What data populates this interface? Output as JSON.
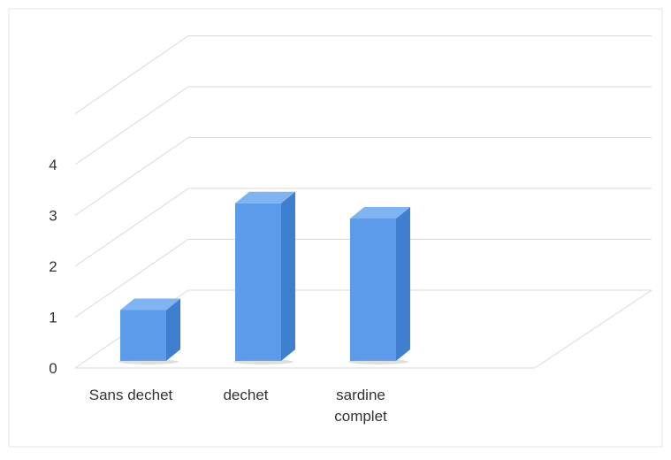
{
  "chart_data": {
    "type": "bar",
    "title": "",
    "xlabel": "",
    "ylabel": "",
    "categories": [
      "Sans dechet",
      "dechet",
      "sardine complet"
    ],
    "values": [
      1.0,
      3.1,
      2.8
    ],
    "ylim": [
      0,
      4
    ],
    "yticks": [
      "0",
      "1",
      "2",
      "3",
      "4"
    ],
    "grid": true,
    "legend": "none",
    "style": "3d-column",
    "colors": {
      "bar_front": "#5b9bea",
      "bar_side": "#3f7fd0",
      "bar_top": "#7fb3f2",
      "gridline": "#d9d9d9",
      "axis_text": "#333333"
    }
  }
}
